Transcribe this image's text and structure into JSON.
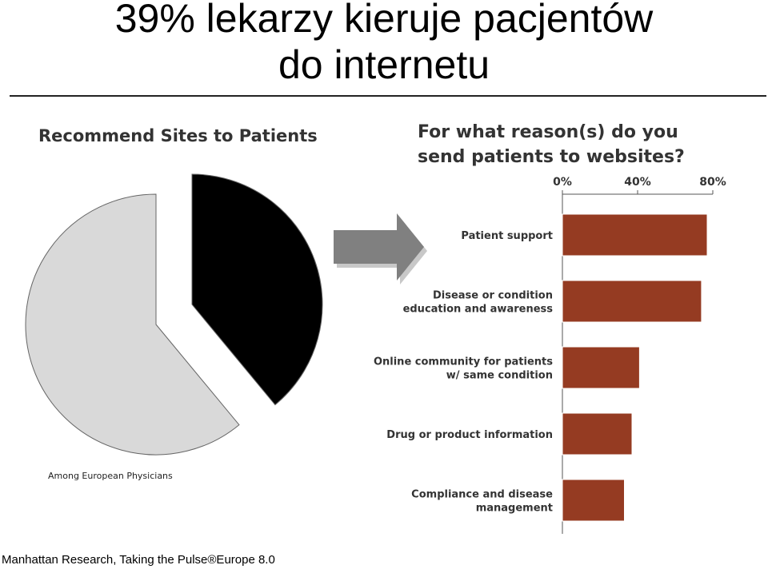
{
  "title_line1": "39% lekarzy kieruje pacjentów",
  "title_line2": "do internetu",
  "source": "Manhattan Research, Taking the Pulse®Europe 8.0",
  "colors": {
    "bar": "#953b22",
    "pie_yes": "#000000",
    "pie_no": "#d9d9d9",
    "arrow": "#808080"
  },
  "chart_data": [
    {
      "type": "pie",
      "title": "Recommend Sites to Patients",
      "note": "Among European Physicians",
      "slices": [
        {
          "name": "",
          "value": 39
        },
        {
          "name": "",
          "value": 61
        }
      ]
    },
    {
      "type": "bar",
      "orientation": "horizontal",
      "title": "For what reason(s) do you send patients to websites?",
      "categories": [
        [
          "Patient support"
        ],
        [
          "Disease or condition",
          "education and awareness"
        ],
        [
          "Online community for patients",
          "w/ same condition"
        ],
        [
          "Drug or product information"
        ],
        [
          "Compliance and disease",
          "management"
        ]
      ],
      "values": [
        77,
        74,
        41,
        37,
        33
      ],
      "xlim": [
        0,
        80
      ],
      "ticks": [
        "0%",
        "40%",
        "80%"
      ],
      "tick_values": [
        0,
        40,
        80
      ]
    }
  ]
}
